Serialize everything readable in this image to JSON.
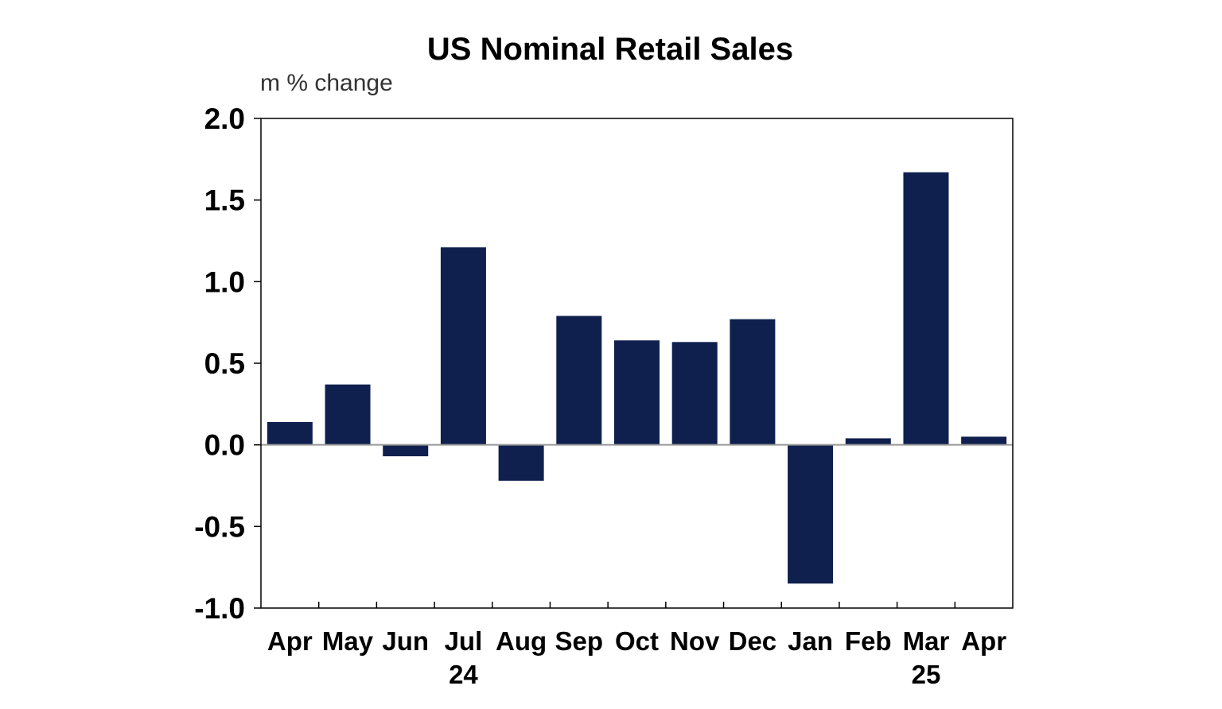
{
  "chart_data": {
    "type": "bar",
    "title": "US Nominal Retail Sales",
    "ylabel": "m % change",
    "xlabel": "",
    "ylim": [
      -1.0,
      2.0
    ],
    "yticks": [
      "2.0",
      "1.5",
      "1.0",
      "0.5",
      "0.0",
      "-0.5",
      "-1.0"
    ],
    "ytick_values": [
      2.0,
      1.5,
      1.0,
      0.5,
      0.0,
      -0.5,
      -1.0
    ],
    "categories": [
      "Apr",
      "May",
      "Jun",
      "Jul",
      "Aug",
      "Sep",
      "Oct",
      "Nov",
      "Dec",
      "Jan",
      "Feb",
      "Mar",
      "Apr"
    ],
    "year_labels": [
      {
        "label": "24",
        "category_index": 3
      },
      {
        "label": "25",
        "category_index": 11
      }
    ],
    "values": [
      0.14,
      0.37,
      -0.07,
      1.21,
      -0.22,
      0.79,
      0.64,
      0.63,
      0.77,
      -0.85,
      0.04,
      1.67,
      0.05
    ],
    "bar_color": "#0f1f4e",
    "grid": false
  }
}
